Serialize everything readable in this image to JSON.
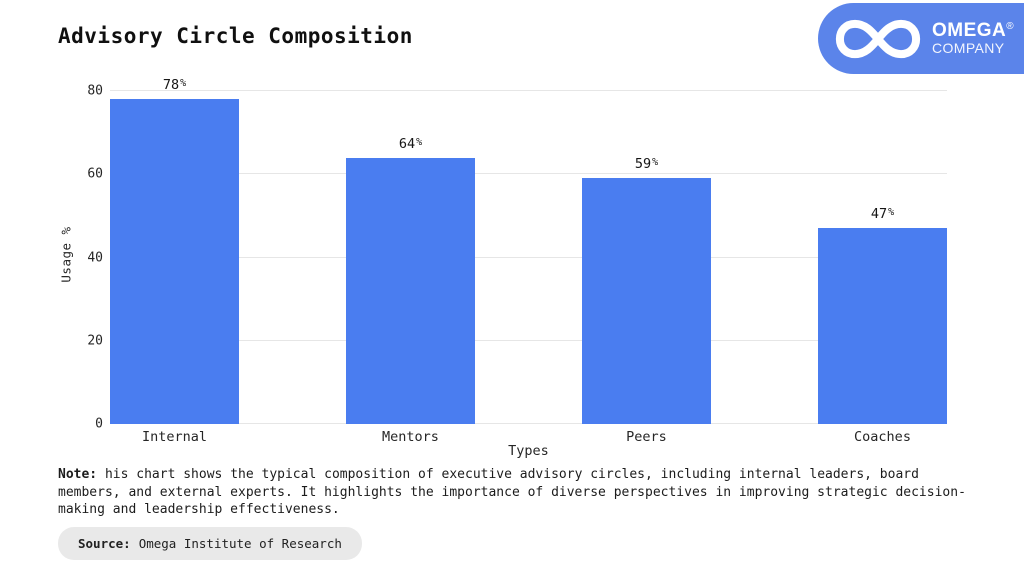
{
  "header": {
    "title": "Advisory Circle Composition"
  },
  "logo": {
    "brand": "OMEGA",
    "registered": "®",
    "subtitle": "COMPANY",
    "bg_color": "#5b84ea",
    "icon": "infinity-icon",
    "icon_color": "#ffffff"
  },
  "chart_data": {
    "type": "bar",
    "categories": [
      "Internal",
      "Mentors",
      "Peers",
      "Coaches"
    ],
    "values": [
      78,
      64,
      59,
      47
    ],
    "value_suffix": "%",
    "title": "Advisory Circle Composition",
    "xlabel": "Types",
    "ylabel": "Usage %",
    "ylim": [
      0,
      80
    ],
    "yticks": [
      0,
      20,
      40,
      60,
      80
    ],
    "grid": true,
    "legend": false,
    "bar_color": "#4a7df0",
    "gridline_color": "#e6e6e6"
  },
  "note": {
    "label": "Note:",
    "text": "his chart shows the typical composition of executive advisory circles, including internal leaders, board members, and external experts. It highlights the importance of diverse perspectives in improving strategic decision-making and leadership effectiveness."
  },
  "source": {
    "label": "Source:",
    "text": "Omega Institute of Research"
  }
}
